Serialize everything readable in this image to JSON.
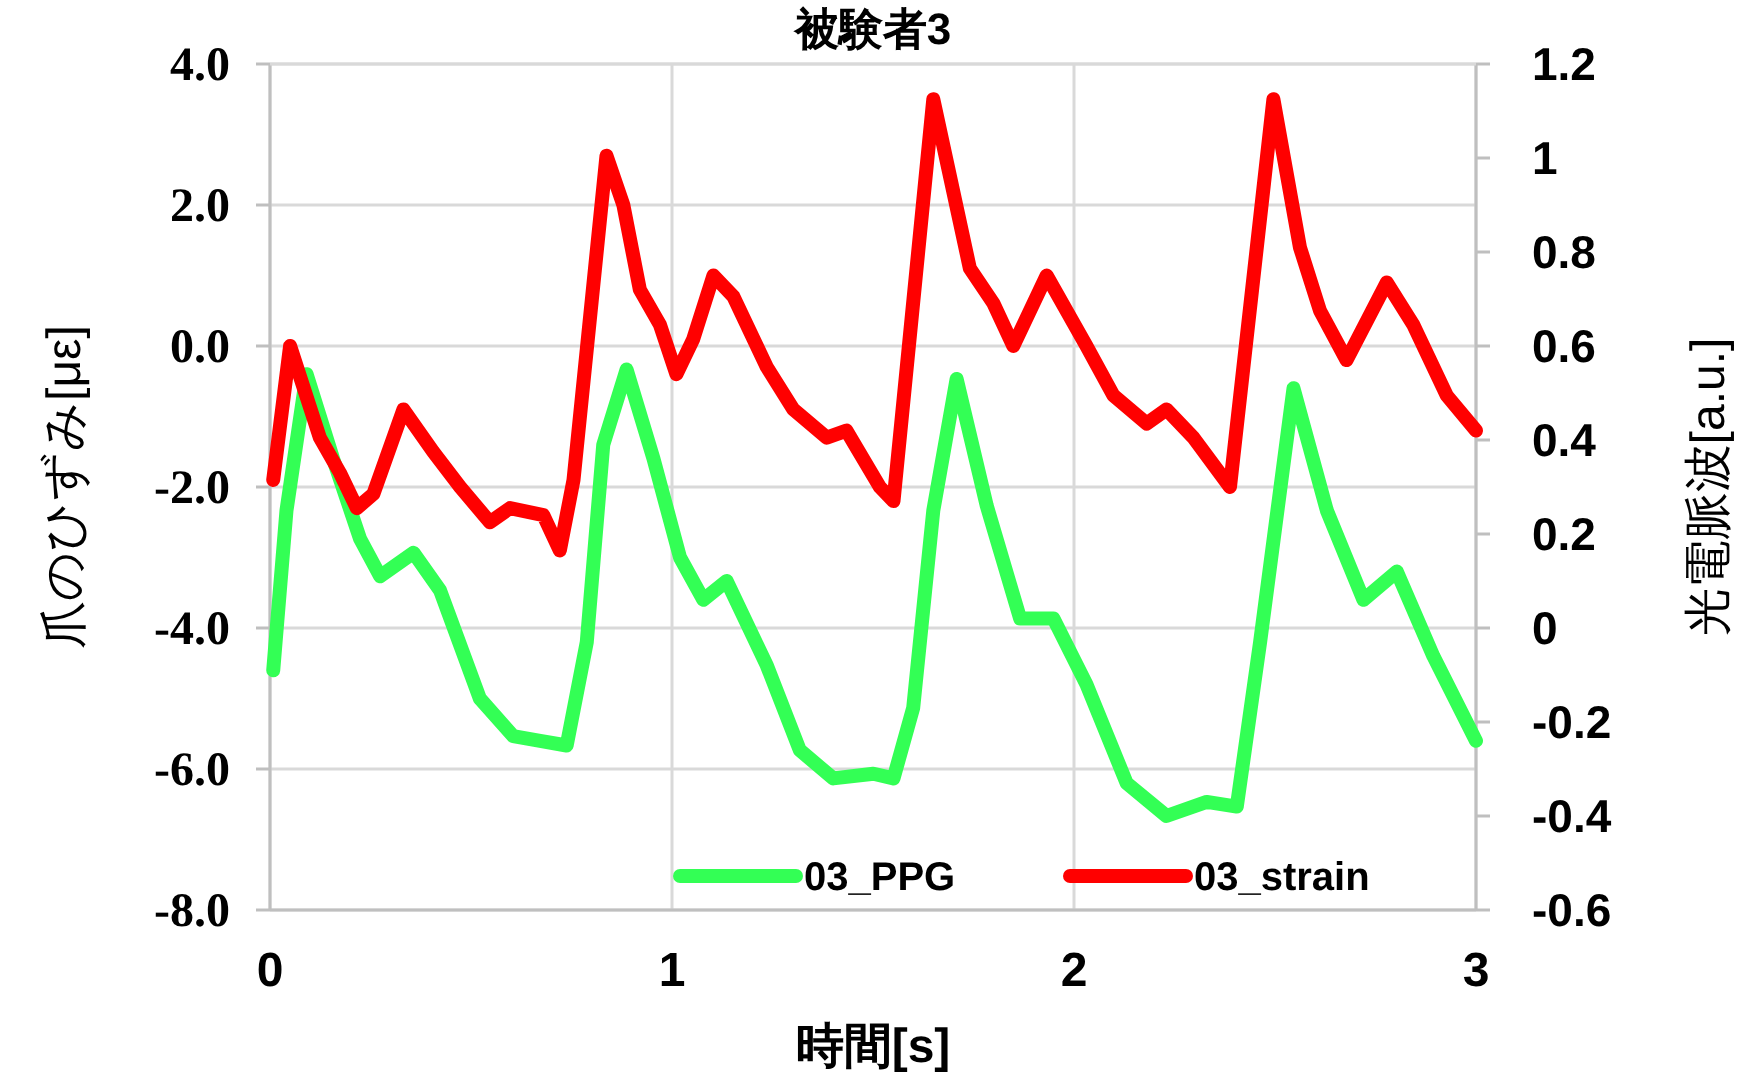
{
  "chart_data": {
    "type": "line",
    "title": "被験者3",
    "xlabel": "時間[s]",
    "ylabel": "爪のひずみ[με]",
    "y2label": "光電脈波[a.u.]",
    "xlim": [
      0,
      3
    ],
    "xticks": [
      0,
      1,
      2,
      3
    ],
    "ylim": [
      -8,
      4
    ],
    "yticks": [
      {
        "value": -8,
        "label": "-8.0"
      },
      {
        "value": -6,
        "label": "-6.0"
      },
      {
        "value": -4,
        "label": "-4.0"
      },
      {
        "value": -2,
        "label": "-2.0"
      },
      {
        "value": 0,
        "label": "0.0"
      },
      {
        "value": 2,
        "label": "2.0"
      },
      {
        "value": 4,
        "label": "4.0"
      }
    ],
    "y2lim": [
      -0.6,
      1.2
    ],
    "y2ticks": [
      -0.6,
      -0.4,
      -0.2,
      0,
      0.2,
      0.4,
      0.6,
      0.8,
      1,
      1.2
    ],
    "grid": true,
    "legend": "bottom",
    "line_style": "solid",
    "marker": "none",
    "series": [
      {
        "name": "03_PPG",
        "color": "#33ff55",
        "axis": "y2",
        "x": [
          0.008,
          0.041,
          0.091,
          0.157,
          0.224,
          0.274,
          0.357,
          0.423,
          0.522,
          0.605,
          0.672,
          0.738,
          0.788,
          0.829,
          0.887,
          0.954,
          1.02,
          1.078,
          1.136,
          1.236,
          1.318,
          1.401,
          1.501,
          1.551,
          1.6,
          1.65,
          1.708,
          1.783,
          1.866,
          1.949,
          2.031,
          2.131,
          2.23,
          2.33,
          2.405,
          2.463,
          2.546,
          2.629,
          2.72,
          2.803,
          2.894,
          3.0
        ],
        "values": [
          -0.09,
          0.25,
          0.54,
          0.36,
          0.19,
          0.11,
          0.16,
          0.08,
          -0.15,
          -0.23,
          -0.24,
          -0.25,
          -0.03,
          0.39,
          0.55,
          0.36,
          0.15,
          0.06,
          0.1,
          -0.08,
          -0.26,
          -0.32,
          -0.31,
          -0.32,
          -0.17,
          0.25,
          0.53,
          0.26,
          0.02,
          0.02,
          -0.12,
          -0.33,
          -0.4,
          -0.37,
          -0.38,
          -0.03,
          0.51,
          0.25,
          0.06,
          0.12,
          -0.06,
          -0.24
        ]
      },
      {
        "name": "03_strain",
        "color": "#ff0000",
        "x": [
          0.008,
          0.05,
          0.124,
          0.174,
          0.216,
          0.257,
          0.332,
          0.406,
          0.473,
          0.547,
          0.597,
          0.68,
          0.721,
          0.755,
          0.837,
          0.879,
          0.92,
          0.97,
          1.011,
          1.053,
          1.103,
          1.153,
          1.236,
          1.302,
          1.385,
          1.434,
          1.517,
          1.551,
          1.65,
          1.741,
          1.8,
          1.849,
          1.932,
          2.031,
          2.098,
          2.181,
          2.23,
          2.297,
          2.388,
          2.496,
          2.562,
          2.612,
          2.678,
          2.778,
          2.844,
          2.927,
          3.0
        ],
        "values": [
          -1.9,
          0.0,
          -1.3,
          -1.8,
          -2.3,
          -2.1,
          -0.9,
          -1.5,
          -2.0,
          -2.5,
          -2.3,
          -2.4,
          -2.9,
          -1.9,
          2.7,
          2.0,
          0.8,
          0.3,
          -0.4,
          0.1,
          1.0,
          0.7,
          -0.3,
          -0.9,
          -1.3,
          -1.2,
          -2.0,
          -2.2,
          3.5,
          1.1,
          0.6,
          0.0,
          1.0,
          0.0,
          -0.7,
          -1.1,
          -0.9,
          -1.3,
          -2.0,
          3.5,
          1.4,
          0.5,
          -0.2,
          0.9,
          0.3,
          -0.7,
          -1.2
        ]
      }
    ]
  }
}
